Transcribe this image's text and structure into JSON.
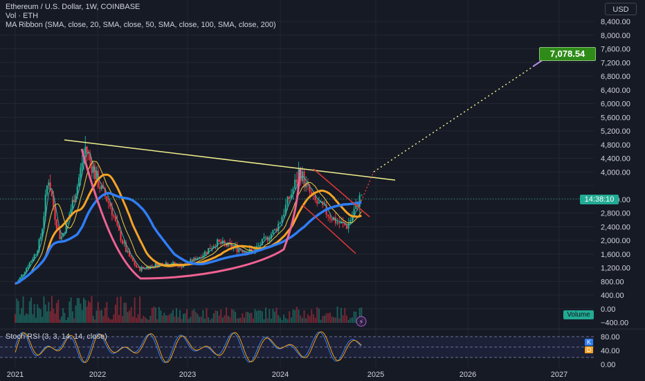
{
  "legend": {
    "title": "Ethereum / U.S. Dollar, 1W, COINBASE",
    "vol": "Vol · ETH",
    "ma": "MA Ribbon (SMA, close, 20, SMA, close, 50, SMA, close, 100, SMA, close, 200)",
    "stoch": "Stoch RSI (3, 3, 14, 14, close)"
  },
  "currency_button": "USD",
  "volume_badge": "Volume",
  "stoch_badges": {
    "k": "K",
    "d": "D"
  },
  "colors": {
    "background": "#161a25",
    "up": "#22ab94",
    "down": "#f23645",
    "ma20": "#43b6a6",
    "ma50": "#f4d03f",
    "ma100": "#f7a325",
    "ma200": "#2f7df6",
    "cup": "#f06292",
    "trendline": "#f0f08c",
    "channel": "#e53935",
    "projection": "#f0f08c",
    "k_line": "#3b82f6",
    "d_line": "#f59e0b",
    "target": "#2e8b18"
  },
  "chart_data": {
    "type": "candlestick",
    "title": "Ethereum / U.S. Dollar, 1W, COINBASE",
    "x_ticks": [
      "2021",
      "2022",
      "2023",
      "2024",
      "2025",
      "2026",
      "2027"
    ],
    "y_ticks": [
      "8,400.00",
      "8,000.00",
      "7,600.00",
      "7,200.00",
      "6,800.00",
      "6,400.00",
      "6,000.00",
      "5,600.00",
      "5,200.00",
      "4,800.00",
      "4,400.00",
      "4,000.00",
      "3,600.00",
      "2,800.00",
      "2,400.00",
      "2,000.00",
      "1,600.00",
      "1,200.00",
      "800.00",
      "400.00",
      "0.00",
      "−400.00"
    ],
    "y_scale": "log",
    "price_series_approx": {
      "x": [
        2021.0,
        2021.3,
        2021.4,
        2021.55,
        2021.85,
        2022.15,
        2022.45,
        2022.75,
        2022.95,
        2023.3,
        2023.7,
        2023.95,
        2024.2,
        2024.35,
        2024.6,
        2024.7,
        2024.85
      ],
      "close": [
        730,
        1950,
        3900,
        2000,
        4700,
        2900,
        1100,
        1300,
        1200,
        1900,
        1650,
        2300,
        4000,
        3100,
        2500,
        2400,
        3300
      ]
    },
    "current_price_countdown": "14:38:10",
    "target_price": "7,078.54",
    "stoch_rsi": {
      "y_ticks": [
        "80.00",
        "40.00",
        "0.00"
      ],
      "bands": [
        20,
        50,
        80
      ]
    },
    "annotations": [
      "descending resistance trendline",
      "cup and handle",
      "falling wedge channel",
      "projected target 7,078.54"
    ]
  }
}
